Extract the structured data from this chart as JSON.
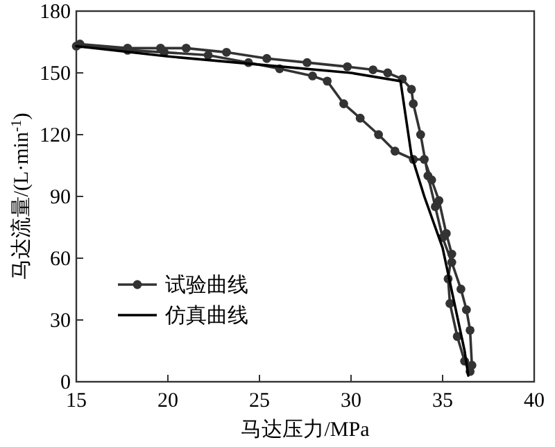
{
  "chart_data": {
    "type": "line",
    "xlabel": "马达压力/MPa",
    "ylabel": "马达流量/(L·min$^{-1}$)",
    "xlim": [
      15,
      40
    ],
    "ylim": [
      0,
      180
    ],
    "xticks": [
      15,
      20,
      25,
      30,
      35,
      40
    ],
    "yticks": [
      0,
      30,
      60,
      90,
      120,
      150,
      180
    ],
    "legend": "bottom left",
    "series": [
      {
        "name": "试验曲线",
        "color": "#333333",
        "marker": "circle",
        "x": [
          15.2,
          17.8,
          19.6,
          21,
          23.2,
          25.4,
          27.6,
          29.8,
          31.2,
          32,
          32.8,
          33.3,
          33.4,
          33.8,
          34.2,
          34.6,
          35,
          35.5,
          36,
          36.3,
          36.5,
          36.6,
          36.5,
          36.2,
          35.8,
          35.4,
          35.3,
          35.5,
          35.2,
          34.8,
          34.4,
          34,
          33.4,
          32.4,
          31.5,
          30.5,
          29.6,
          28.7,
          27.9,
          26.1,
          24.4,
          22.2,
          19.8,
          17.8,
          15
        ],
        "values": [
          164,
          162,
          162,
          162,
          160,
          157,
          155,
          153,
          151.5,
          150,
          147,
          142,
          135,
          120,
          100,
          85,
          70,
          58,
          45,
          35,
          25,
          8,
          5,
          10,
          22,
          38,
          50,
          62,
          72,
          88,
          98,
          108,
          108,
          112,
          120,
          128,
          135,
          146,
          148.5,
          152,
          155,
          158.6,
          160,
          161,
          163
        ]
      },
      {
        "name": "仿真曲线",
        "color": "#000000",
        "marker": "none",
        "x": [
          15,
          20,
          25,
          30,
          32.7,
          33.3,
          34,
          35,
          35.6,
          36.2,
          36.4
        ],
        "values": [
          163,
          158,
          154,
          150,
          146,
          110,
          90,
          65,
          40,
          15,
          3
        ]
      }
    ]
  }
}
